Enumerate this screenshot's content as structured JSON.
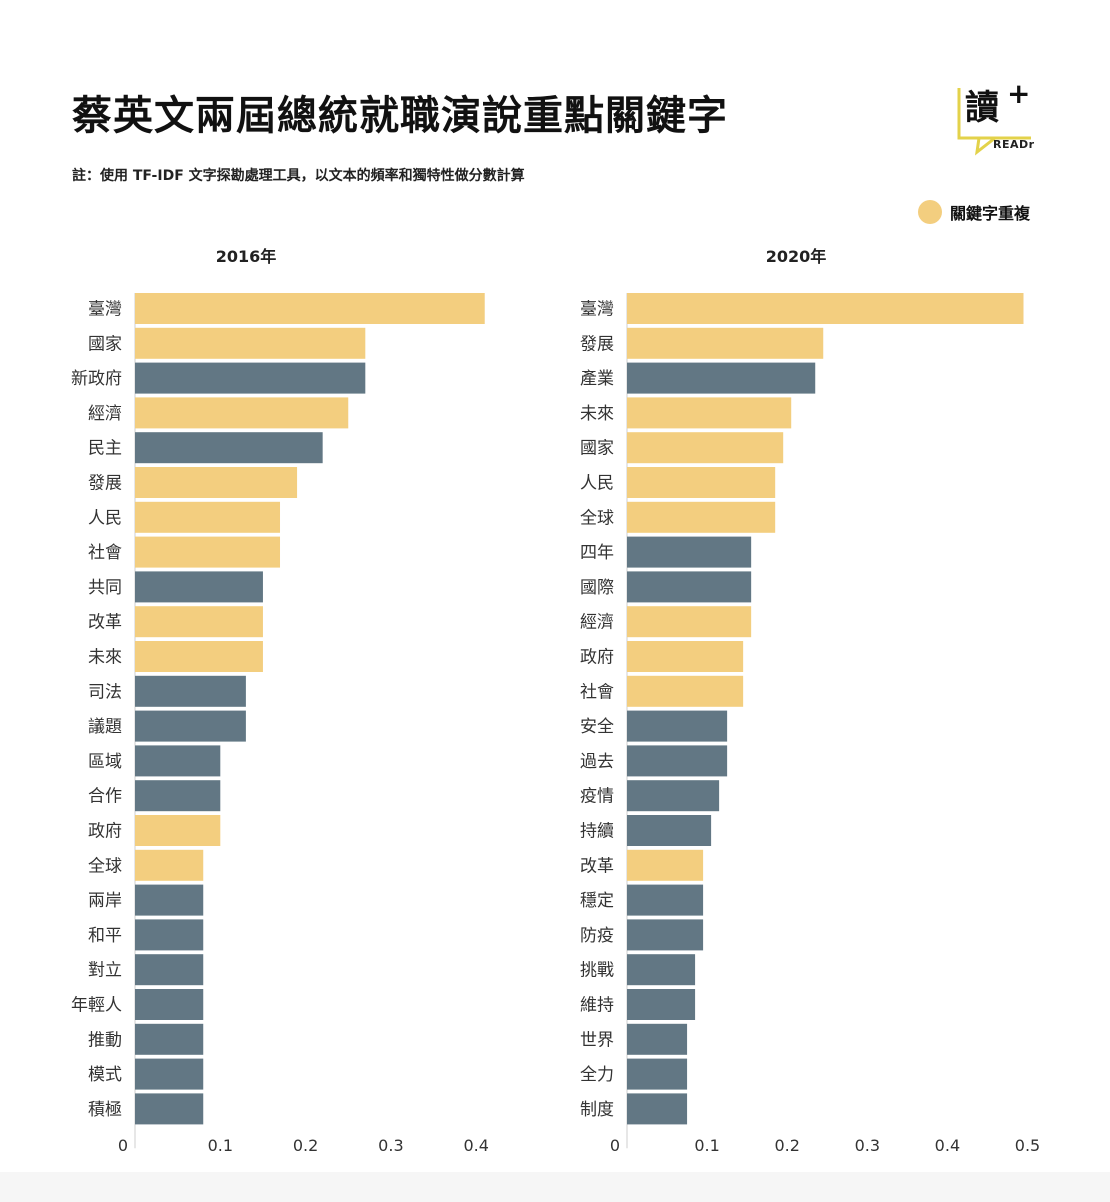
{
  "header": {
    "title": "蔡英文兩屆總統就職演說重點關鍵字",
    "note": "註：使用 TF-IDF 文字探勘處理工具，以文本的頻率和獨特性做分數計算",
    "logo_char": "讀",
    "logo_plus": "+",
    "logo_text": "READr"
  },
  "legend": {
    "label": "關鍵字重複",
    "color": "#f3ce7f"
  },
  "colors": {
    "repeated": "#f3ce7f",
    "unique": "#627784"
  },
  "chart_data": [
    {
      "type": "bar",
      "orientation": "horizontal",
      "title": "2016年",
      "xlim": [
        0,
        0.45
      ],
      "xticks": [
        "0",
        "0.1",
        "0.2",
        "0.3",
        "0.4"
      ],
      "xtick_values": [
        0,
        0.1,
        0.2,
        0.3,
        0.4
      ],
      "categories": [
        "臺灣",
        "國家",
        "新政府",
        "經濟",
        "民主",
        "發展",
        "人民",
        "社會",
        "共同",
        "改革",
        "未來",
        "司法",
        "議題",
        "區域",
        "合作",
        "政府",
        "全球",
        "兩岸",
        "和平",
        "對立",
        "年輕人",
        "推動",
        "模式",
        "積極"
      ],
      "values": [
        0.41,
        0.27,
        0.27,
        0.25,
        0.22,
        0.19,
        0.17,
        0.17,
        0.15,
        0.15,
        0.15,
        0.13,
        0.13,
        0.1,
        0.1,
        0.1,
        0.08,
        0.08,
        0.08,
        0.08,
        0.08,
        0.08,
        0.08,
        0.08
      ],
      "repeated": [
        true,
        true,
        false,
        true,
        false,
        true,
        true,
        true,
        false,
        true,
        true,
        false,
        false,
        false,
        false,
        true,
        true,
        false,
        false,
        false,
        false,
        false,
        false,
        false
      ]
    },
    {
      "type": "bar",
      "orientation": "horizontal",
      "title": "2020年",
      "xlim": [
        0,
        0.5
      ],
      "xticks": [
        "0",
        "0.1",
        "0.2",
        "0.3",
        "0.4",
        "0.5"
      ],
      "xtick_values": [
        0,
        0.1,
        0.2,
        0.3,
        0.4,
        0.5
      ],
      "categories": [
        "臺灣",
        "發展",
        "產業",
        "未來",
        "國家",
        "人民",
        "全球",
        "四年",
        "國際",
        "經濟",
        "政府",
        "社會",
        "安全",
        "過去",
        "疫情",
        "持續",
        "改革",
        "穩定",
        "防疫",
        "挑戰",
        "維持",
        "世界",
        "全力",
        "制度"
      ],
      "values": [
        0.495,
        0.245,
        0.235,
        0.205,
        0.195,
        0.185,
        0.185,
        0.155,
        0.155,
        0.155,
        0.145,
        0.145,
        0.125,
        0.125,
        0.115,
        0.105,
        0.095,
        0.095,
        0.095,
        0.085,
        0.085,
        0.075,
        0.075,
        0.075
      ],
      "repeated": [
        true,
        true,
        false,
        true,
        true,
        true,
        true,
        false,
        false,
        true,
        true,
        true,
        false,
        false,
        false,
        false,
        true,
        false,
        false,
        false,
        false,
        false,
        false,
        false
      ]
    }
  ]
}
